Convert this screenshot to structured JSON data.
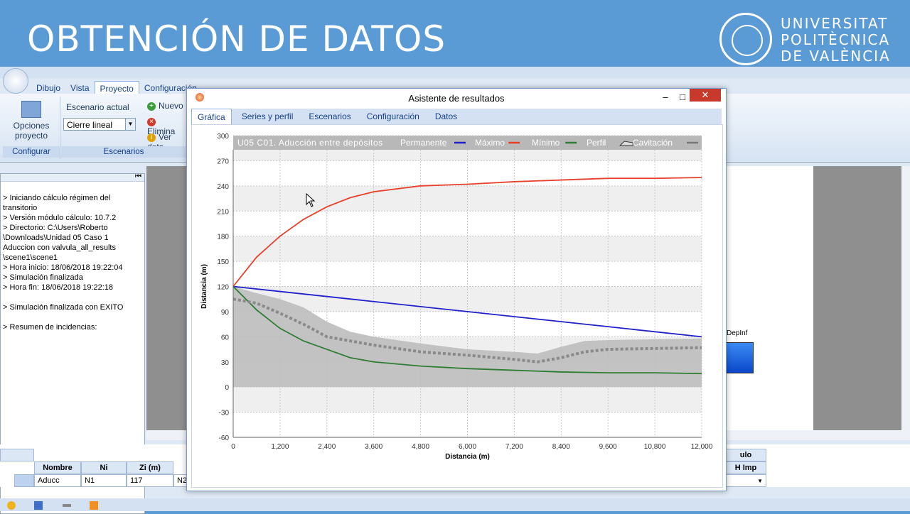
{
  "slide": {
    "title": "OBTENCIÓN DE DATOS",
    "university": [
      "UNIVERSITAT",
      "POLITÈCNICA",
      "DE VALÈNCIA"
    ]
  },
  "app": {
    "tabs": [
      "Dibujo",
      "Vista",
      "Proyecto",
      "Configuración"
    ],
    "active_tab": "Proyecto",
    "ribbon": {
      "opciones_label": "Opciones proyecto",
      "configurar_group": "Configurar",
      "escenario_label": "Escenario actual",
      "escenario_value": "Cierre lineal",
      "nuevo": "Nuevo",
      "eliminar": "Elimina",
      "ver": "Ver deta",
      "escenarios_group": "Escenarios"
    },
    "log": "> Iniciando cálculo régimen del\ntransitorio\n> Versión módulo cálculo: 10.7.2\n> Directorio: C:\\Users\\Roberto\n\\Downloads\\Unidad 05 Caso 1\nAduccion con valvula_all_results\n\\scene1\\scene1\n> Hora inicio: 18/06/2018 19:22:04\n> Simulación finalizada\n> Hora fin: 18/06/2018 19:22:18\n\n> Simulación finalizada con EXITO\n\n> Resumen de incidencias:",
    "table": {
      "headers": [
        "Nombre",
        "Ni",
        "Zi (m)"
      ],
      "row": [
        "Aducc",
        "N1",
        "117",
        "N2"
      ],
      "right_header_top": "ulo",
      "right_header": "H Imp"
    },
    "dep_label": "DepInf"
  },
  "dialog": {
    "title": "Asistente de resultados",
    "tabs": [
      "Gráfica",
      "Series y perfil",
      "Escenarios",
      "Configuración",
      "Datos"
    ],
    "active_tab": "Gráfica"
  },
  "colors": {
    "maximo": "#e8402a",
    "minimo": "#2e7d32",
    "permanente": "#1f1fcc",
    "perfil": "#bdbdbd",
    "cavitacion": "#8a8a8a"
  },
  "chart_data": {
    "type": "line",
    "title": "U05 C01. Aducción entre depósitos",
    "xlabel": "Distancia (m)",
    "ylabel": "Distancia (m)",
    "xlim": [
      0,
      12000
    ],
    "ylim": [
      -60,
      300
    ],
    "x_ticks": [
      "0",
      "1,200",
      "2,400",
      "3,600",
      "4,800",
      "6,000",
      "7,200",
      "8,400",
      "9,600",
      "10,800",
      "12,000"
    ],
    "y_ticks": [
      "300",
      "270",
      "240",
      "210",
      "180",
      "150",
      "120",
      "90",
      "60",
      "30",
      "0",
      "-30",
      "-60"
    ],
    "legend": [
      "Permanente",
      "Máximo",
      "Mínimo",
      "Perfil",
      "Cavitación"
    ],
    "series": [
      {
        "name": "Permanente",
        "x": [
          0,
          12000
        ],
        "y": [
          120,
          60
        ]
      },
      {
        "name": "Máximo",
        "x": [
          0,
          600,
          1200,
          1800,
          2400,
          3000,
          3600,
          4800,
          6000,
          7200,
          8400,
          9600,
          10800,
          12000
        ],
        "y": [
          120,
          155,
          180,
          200,
          215,
          226,
          233,
          240,
          242,
          245,
          247,
          249,
          249,
          250
        ]
      },
      {
        "name": "Mínimo",
        "x": [
          0,
          600,
          1200,
          1800,
          2400,
          3000,
          3600,
          4800,
          6000,
          7200,
          8400,
          9600,
          10800,
          12000
        ],
        "y": [
          120,
          92,
          70,
          55,
          45,
          35,
          30,
          25,
          22,
          20,
          18,
          17,
          17,
          16
        ]
      },
      {
        "name": "Perfil",
        "x": [
          0,
          600,
          1200,
          1800,
          2400,
          3000,
          3600,
          4800,
          6000,
          7200,
          7800,
          8400,
          9000,
          9600,
          10800,
          12000
        ],
        "y": [
          120,
          112,
          105,
          95,
          78,
          66,
          60,
          52,
          45,
          42,
          40,
          48,
          55,
          56,
          57,
          58
        ]
      },
      {
        "name": "Cavitación",
        "x": [
          0,
          600,
          1200,
          1800,
          2400,
          3000,
          3600,
          4800,
          6000,
          7200,
          7800,
          8400,
          9000,
          9600,
          10800,
          12000
        ],
        "y": [
          105,
          100,
          88,
          75,
          60,
          55,
          50,
          42,
          38,
          33,
          30,
          35,
          42,
          45,
          46,
          47
        ]
      }
    ]
  }
}
